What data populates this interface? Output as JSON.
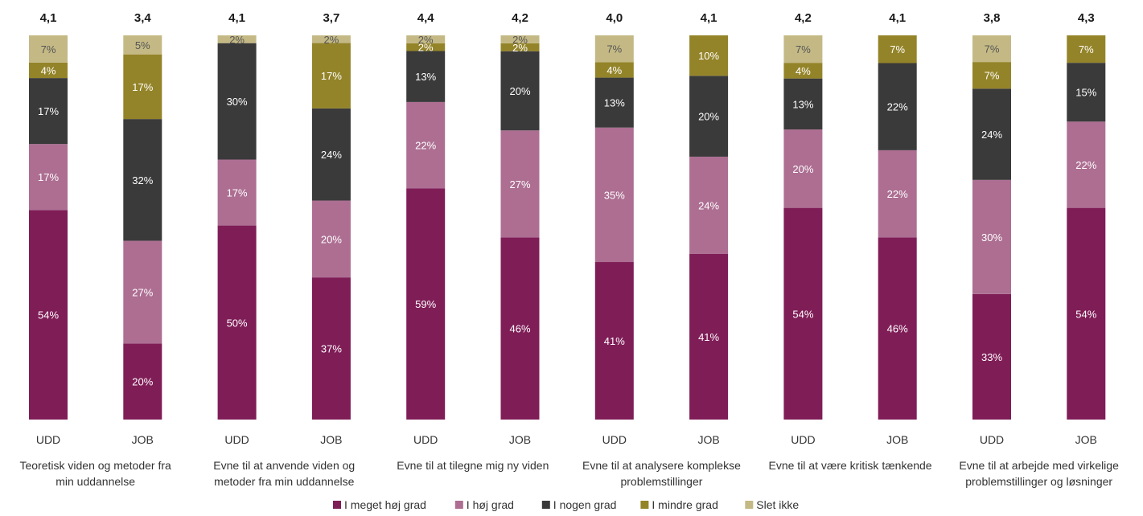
{
  "chart_data": {
    "type": "bar",
    "stacked": "percent",
    "series": [
      {
        "name": "I meget høj grad",
        "color": "#7f1d57",
        "labelColor": "#ffffff",
        "values": [
          54,
          20,
          50,
          37,
          59,
          46,
          41,
          41,
          54,
          46,
          33,
          54
        ],
        "labels": [
          "54%",
          "20%",
          "50%",
          "37%",
          "59%",
          "46%",
          "41%",
          "41%",
          "54%",
          "46%",
          "33%",
          "54%"
        ]
      },
      {
        "name": "I høj grad",
        "color": "#ad6e92",
        "labelColor": "#ffffff",
        "values": [
          17,
          27,
          17,
          20,
          22,
          27,
          35,
          24,
          20,
          22,
          30,
          22
        ],
        "labels": [
          "17%",
          "27%",
          "17%",
          "20%",
          "22%",
          "27%",
          "35%",
          "24%",
          "20%",
          "22%",
          "30%",
          "22%"
        ]
      },
      {
        "name": "I nogen grad",
        "color": "#3a3a3a",
        "labelColor": "#ffffff",
        "values": [
          17,
          32,
          30,
          24,
          13,
          20,
          13,
          20,
          13,
          22,
          24,
          15
        ],
        "labels": [
          "17%",
          "32%",
          "30%",
          "24%",
          "13%",
          "20%",
          "13%",
          "20%",
          "13%",
          "22%",
          "24%",
          "15%"
        ]
      },
      {
        "name": "I mindre grad",
        "color": "#948429",
        "labelColor": "#ffffff",
        "values": [
          4,
          17,
          0,
          17,
          2,
          2,
          4,
          10,
          4,
          7,
          7,
          7
        ],
        "labels": [
          "4%",
          "17%",
          "",
          "17%",
          "2%",
          "2%",
          "4%",
          "10%",
          "4%",
          "7%",
          "7%",
          "7%"
        ]
      },
      {
        "name": "Slet ikke",
        "color": "#c4b985",
        "labelColor": "#555555",
        "values": [
          7,
          5,
          2,
          2,
          2,
          2,
          7,
          0,
          7,
          0,
          7,
          0
        ],
        "labels": [
          "7%",
          "5%",
          "2%",
          "2%",
          "2%",
          "2%",
          "7%",
          "",
          "7%",
          "",
          "7%",
          ""
        ]
      }
    ],
    "categories": [
      "UDD",
      "JOB",
      "UDD",
      "JOB",
      "UDD",
      "JOB",
      "UDD",
      "JOB",
      "UDD",
      "JOB",
      "UDD",
      "JOB"
    ],
    "averages": [
      "4,1",
      "3,4",
      "4,1",
      "3,7",
      "4,4",
      "4,2",
      "4,0",
      "4,1",
      "4,2",
      "4,1",
      "3,8",
      "4,3"
    ],
    "groups": [
      {
        "lines": [
          "Teoretisk viden og metoder fra",
          "min uddannelse"
        ]
      },
      {
        "lines": [
          "Evne til at anvende viden og",
          "metoder fra min uddannelse"
        ]
      },
      {
        "lines": [
          "Evne til at tilegne mig ny viden"
        ]
      },
      {
        "lines": [
          "Evne til at analysere komplekse",
          "problemstillinger"
        ]
      },
      {
        "lines": [
          "Evne til at være kritisk tænkende"
        ]
      },
      {
        "lines": [
          "Evne til at arbejde med virkelige",
          "problemstillinger og løsninger"
        ]
      }
    ],
    "legend_position": "bottom",
    "gridlines": false
  }
}
